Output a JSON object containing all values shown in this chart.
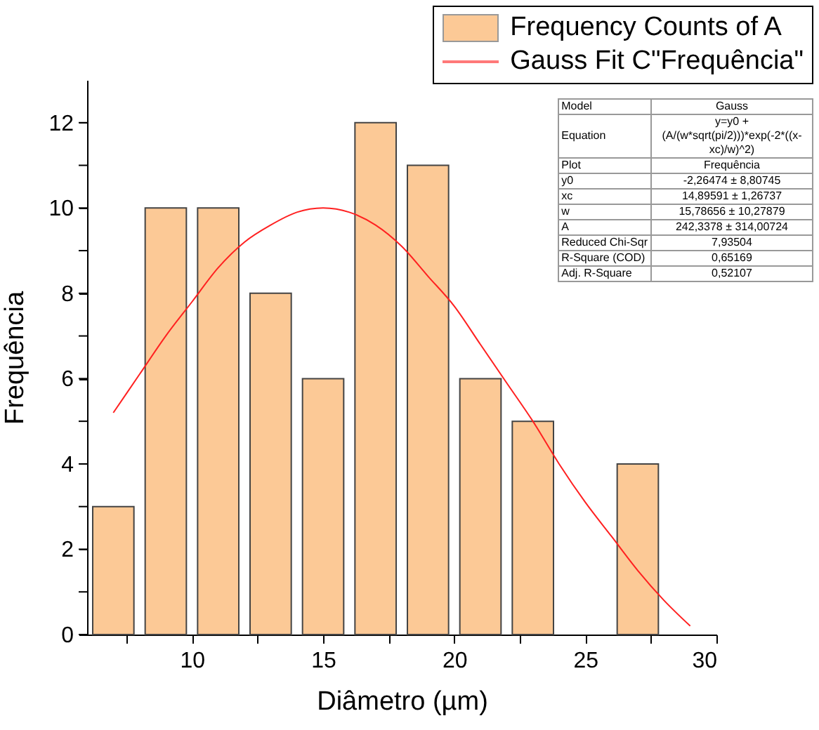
{
  "chart_data": {
    "type": "histogram",
    "xlabel": "Diâmetro (µm)",
    "ylabel": "Frequência",
    "bins": [
      6,
      8,
      10,
      12,
      14,
      16,
      18,
      20,
      22,
      24,
      26,
      28
    ],
    "series": [
      {
        "name": "Frequency Counts of A",
        "color": "#fcc996",
        "values": [
          3,
          10,
          10,
          8,
          6,
          12,
          11,
          6,
          5,
          0,
          4
        ]
      },
      {
        "name": "Gauss Fit C\"Frequência\"",
        "type": "line",
        "color": "#ff2020",
        "x": [
          7,
          8,
          9,
          10,
          11,
          12,
          13,
          14,
          15,
          16,
          17,
          18,
          19,
          20,
          21,
          22,
          23,
          24,
          25,
          26,
          27,
          28,
          29
        ],
        "values": [
          5.2,
          6.1,
          7.0,
          7.8,
          8.6,
          9.2,
          9.6,
          9.9,
          10.0,
          9.9,
          9.6,
          9.1,
          8.4,
          7.7,
          6.8,
          5.9,
          5.0,
          4.0,
          3.1,
          2.3,
          1.5,
          0.8,
          0.2
        ]
      }
    ],
    "xlim": [
      6,
      30
    ],
    "xticks": [
      {
        "value": 7.5,
        "label": null
      },
      10,
      {
        "value": 12.5,
        "label": null
      },
      15,
      {
        "value": 17.5,
        "label": null
      },
      20,
      {
        "value": 22.5,
        "label": null
      },
      25,
      {
        "value": 27.5,
        "label": null
      },
      30
    ],
    "ylim": [
      0,
      13
    ],
    "yticks": [
      0,
      {
        "value": 1,
        "label": null
      },
      2,
      {
        "value": 3,
        "label": null
      },
      4,
      {
        "value": 5,
        "label": null
      },
      6,
      {
        "value": 7,
        "label": null
      },
      8,
      {
        "value": 9,
        "label": null
      },
      10,
      {
        "value": 11,
        "label": null
      },
      12
    ],
    "legend": "top right",
    "grid": false,
    "annotations": [
      "Model",
      "Gauss",
      "Equation",
      "y=y0 + (A/(w*sqrt(pi/2)))*exp(-2*((x-xc)/w)^2)",
      "Plot",
      "Frequência",
      "y0",
      "-2,26474 ± 8,80745",
      "xc",
      "14,89591 ± 1,26737",
      "w",
      "15,78656 ± 10,27879",
      "A",
      "242,3378 ± 314,00724",
      "Reduced Chi-Sqr",
      "7,93504",
      "R-Square (COD)",
      "0,65169",
      "Adj. R-Square",
      "0,52107"
    ]
  }
}
